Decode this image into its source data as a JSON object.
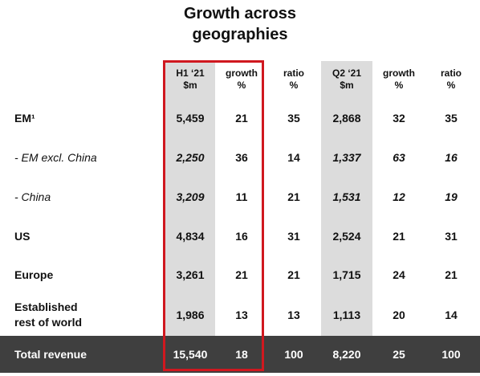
{
  "title_line1": "Growth across",
  "title_line2": "geographies",
  "headers": [
    {
      "line1": "H1 ‘21",
      "line2": "$m"
    },
    {
      "line1": "growth",
      "line2": "%"
    },
    {
      "line1": "ratio",
      "line2": "%"
    },
    {
      "line1": "Q2 ‘21",
      "line2": "$m"
    },
    {
      "line1": "growth",
      "line2": "%"
    },
    {
      "line1": "ratio",
      "line2": "%"
    }
  ],
  "rows": [
    {
      "label": "EM¹",
      "values": [
        "5,459",
        "21",
        "35",
        "2,868",
        "32",
        "35"
      ]
    },
    {
      "label": "- EM excl. China",
      "values": [
        "2,250",
        "36",
        "14",
        "1,337",
        "63",
        "16"
      ]
    },
    {
      "label": "- China",
      "values": [
        "3,209",
        "11",
        "21",
        "1,531",
        "12",
        "19"
      ]
    },
    {
      "label": "US",
      "values": [
        "4,834",
        "16",
        "31",
        "2,524",
        "21",
        "31"
      ]
    },
    {
      "label": "Europe",
      "values": [
        "3,261",
        "21",
        "21",
        "1,715",
        "24",
        "21"
      ]
    },
    {
      "label_line1": "Established",
      "label_line2": "rest of world",
      "values": [
        "1,986",
        "13",
        "13",
        "1,113",
        "20",
        "14"
      ]
    }
  ],
  "total": {
    "label": "Total revenue",
    "values": [
      "15,540",
      "18",
      "100",
      "8,220",
      "25",
      "100"
    ]
  },
  "colors": {
    "highlight": "#d0181f",
    "shade": "#dcdcdc",
    "total_bg": "#3f3f3f"
  }
}
